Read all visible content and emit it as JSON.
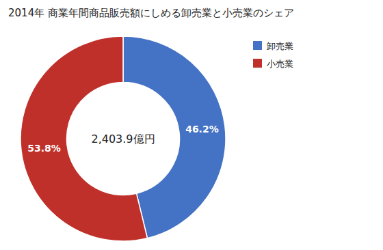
{
  "chart_data": {
    "type": "donut",
    "title": "2014年 商業年間商品販売額にしめる卸売業と小売業のシェア",
    "categories": [
      "卸売業",
      "小売業"
    ],
    "values": [
      46.2,
      53.8
    ],
    "value_labels": [
      "46.2%",
      "53.8%"
    ],
    "colors": [
      "#4472C4",
      "#C0302A"
    ],
    "data_labels": true,
    "legend": "upper right",
    "annotations": [
      "2,403.9億円"
    ]
  }
}
